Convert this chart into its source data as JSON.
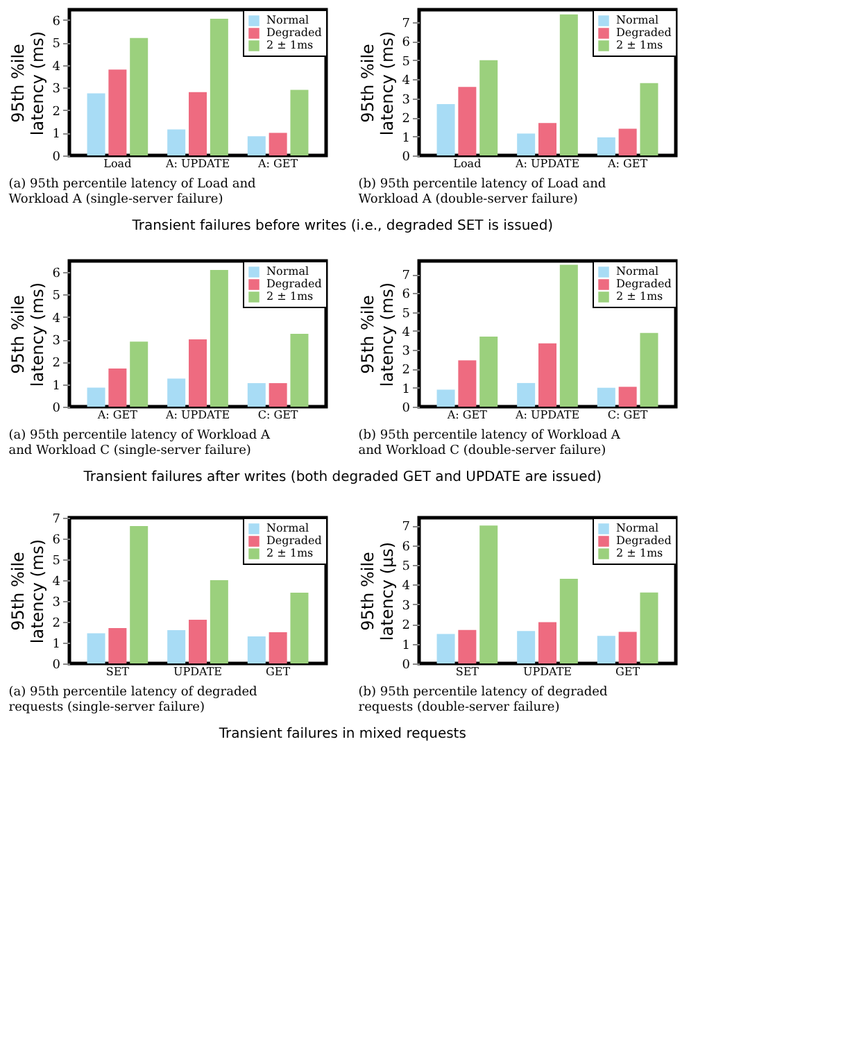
{
  "chart_data": [
    {
      "type": "bar",
      "categories": [
        "Load",
        "A: UPDATE",
        "A: GET"
      ],
      "ylabel": "95th %ile latency (ms)",
      "ylim": [
        0,
        6.45
      ],
      "yticks": [
        0,
        1,
        2,
        3,
        4,
        5,
        6
      ],
      "grid": false,
      "legend": "top right",
      "series": [
        {
          "name": "Normal",
          "color": "#a8dcf5",
          "values": [
            2.75,
            1.15,
            0.85
          ]
        },
        {
          "name": "Degraded",
          "color": "#ee6b80",
          "values": [
            3.8,
            2.8,
            1.0
          ]
        },
        {
          "name": "2 ± 1ms",
          "color": "#9bd07d",
          "values": [
            5.2,
            6.05,
            2.9
          ]
        }
      ],
      "annotations": [
        "(a) 95th percentile latency of Load and Workload A (single-server failure)",
        "Transient failures before writes (i.e., degraded SET is issued)"
      ]
    },
    {
      "type": "bar",
      "categories": [
        "Load",
        "A: UPDATE",
        "A: GET"
      ],
      "ylabel": "95th %ile latency (ms)",
      "ylim": [
        0,
        7.65
      ],
      "yticks": [
        0,
        1,
        2,
        3,
        4,
        5,
        6,
        7
      ],
      "grid": false,
      "legend": "top right",
      "series": [
        {
          "name": "Normal",
          "color": "#a8dcf5",
          "values": [
            2.7,
            1.15,
            0.95
          ]
        },
        {
          "name": "Degraded",
          "color": "#ee6b80",
          "values": [
            3.6,
            1.7,
            1.4
          ]
        },
        {
          "name": "2 ± 1ms",
          "color": "#9bd07d",
          "values": [
            5.0,
            7.4,
            3.8
          ]
        }
      ],
      "annotations": [
        "(b) 95th percentile latency of Load and Workload A (double-server failure)"
      ]
    },
    {
      "type": "bar",
      "categories": [
        "A: GET",
        "A: UPDATE",
        "C: GET"
      ],
      "ylabel": "95th %ile latency (ms)",
      "ylim": [
        0,
        6.5
      ],
      "yticks": [
        0,
        1,
        2,
        3,
        4,
        5,
        6
      ],
      "grid": false,
      "legend": "top right",
      "series": [
        {
          "name": "Normal",
          "color": "#a8dcf5",
          "values": [
            0.85,
            1.25,
            1.05
          ]
        },
        {
          "name": "Degraded",
          "color": "#ee6b80",
          "values": [
            1.7,
            3.0,
            1.05
          ]
        },
        {
          "name": "2 ± 1ms",
          "color": "#9bd07d",
          "values": [
            2.9,
            6.1,
            3.25
          ]
        }
      ],
      "annotations": [
        "(a) 95th percentile latency of Workload A and Workload C (single-server failure)",
        "Transient failures after writes (both degraded GET and UPDATE are issued)"
      ]
    },
    {
      "type": "bar",
      "categories": [
        "A: GET",
        "A: UPDATE",
        "C: GET"
      ],
      "ylabel": "95th %ile latency (ms)",
      "ylim": [
        0,
        7.7
      ],
      "yticks": [
        0,
        1,
        2,
        3,
        4,
        5,
        6,
        7
      ],
      "grid": false,
      "legend": "top right",
      "series": [
        {
          "name": "Normal",
          "color": "#a8dcf5",
          "values": [
            0.9,
            1.25,
            1.0
          ]
        },
        {
          "name": "Degraded",
          "color": "#ee6b80",
          "values": [
            2.45,
            3.35,
            1.05
          ]
        },
        {
          "name": "2 ± 1ms",
          "color": "#9bd07d",
          "values": [
            3.7,
            7.5,
            3.9
          ]
        }
      ],
      "annotations": [
        "(b) 95th percentile latency of Workload A and Workload C (double-server failure)"
      ]
    },
    {
      "type": "bar",
      "categories": [
        "SET",
        "UPDATE",
        "GET"
      ],
      "ylabel": "95th %ile latency (ms)",
      "ylim": [
        0,
        7
      ],
      "yticks": [
        0,
        1,
        2,
        3,
        4,
        5,
        6,
        7
      ],
      "grid": false,
      "legend": "top right",
      "series": [
        {
          "name": "Normal",
          "color": "#a8dcf5",
          "values": [
            1.45,
            1.6,
            1.3
          ]
        },
        {
          "name": "Degraded",
          "color": "#ee6b80",
          "values": [
            1.7,
            2.1,
            1.5
          ]
        },
        {
          "name": "2 ± 1ms",
          "color": "#9bd07d",
          "values": [
            6.6,
            4.0,
            3.4
          ]
        }
      ],
      "annotations": [
        "(a) 95th percentile latency of degraded requests (single-server failure)",
        "Transient failures in mixed requests"
      ]
    },
    {
      "type": "bar",
      "categories": [
        "SET",
        "UPDATE",
        "GET"
      ],
      "ylabel": "95th %ile latency (μs)",
      "ylim": [
        0,
        7.4
      ],
      "yticks": [
        0,
        1,
        2,
        3,
        4,
        5,
        6,
        7
      ],
      "grid": false,
      "legend": "top right",
      "series": [
        {
          "name": "Normal",
          "color": "#a8dcf5",
          "values": [
            1.5,
            1.65,
            1.4
          ]
        },
        {
          "name": "Degraded",
          "color": "#ee6b80",
          "values": [
            1.7,
            2.1,
            1.6
          ]
        },
        {
          "name": "2 ± 1ms",
          "color": "#9bd07d",
          "values": [
            7.0,
            4.3,
            3.6
          ]
        }
      ],
      "annotations": [
        "(b) 95th percentile latency of degraded requests (double-server failure)"
      ]
    }
  ]
}
